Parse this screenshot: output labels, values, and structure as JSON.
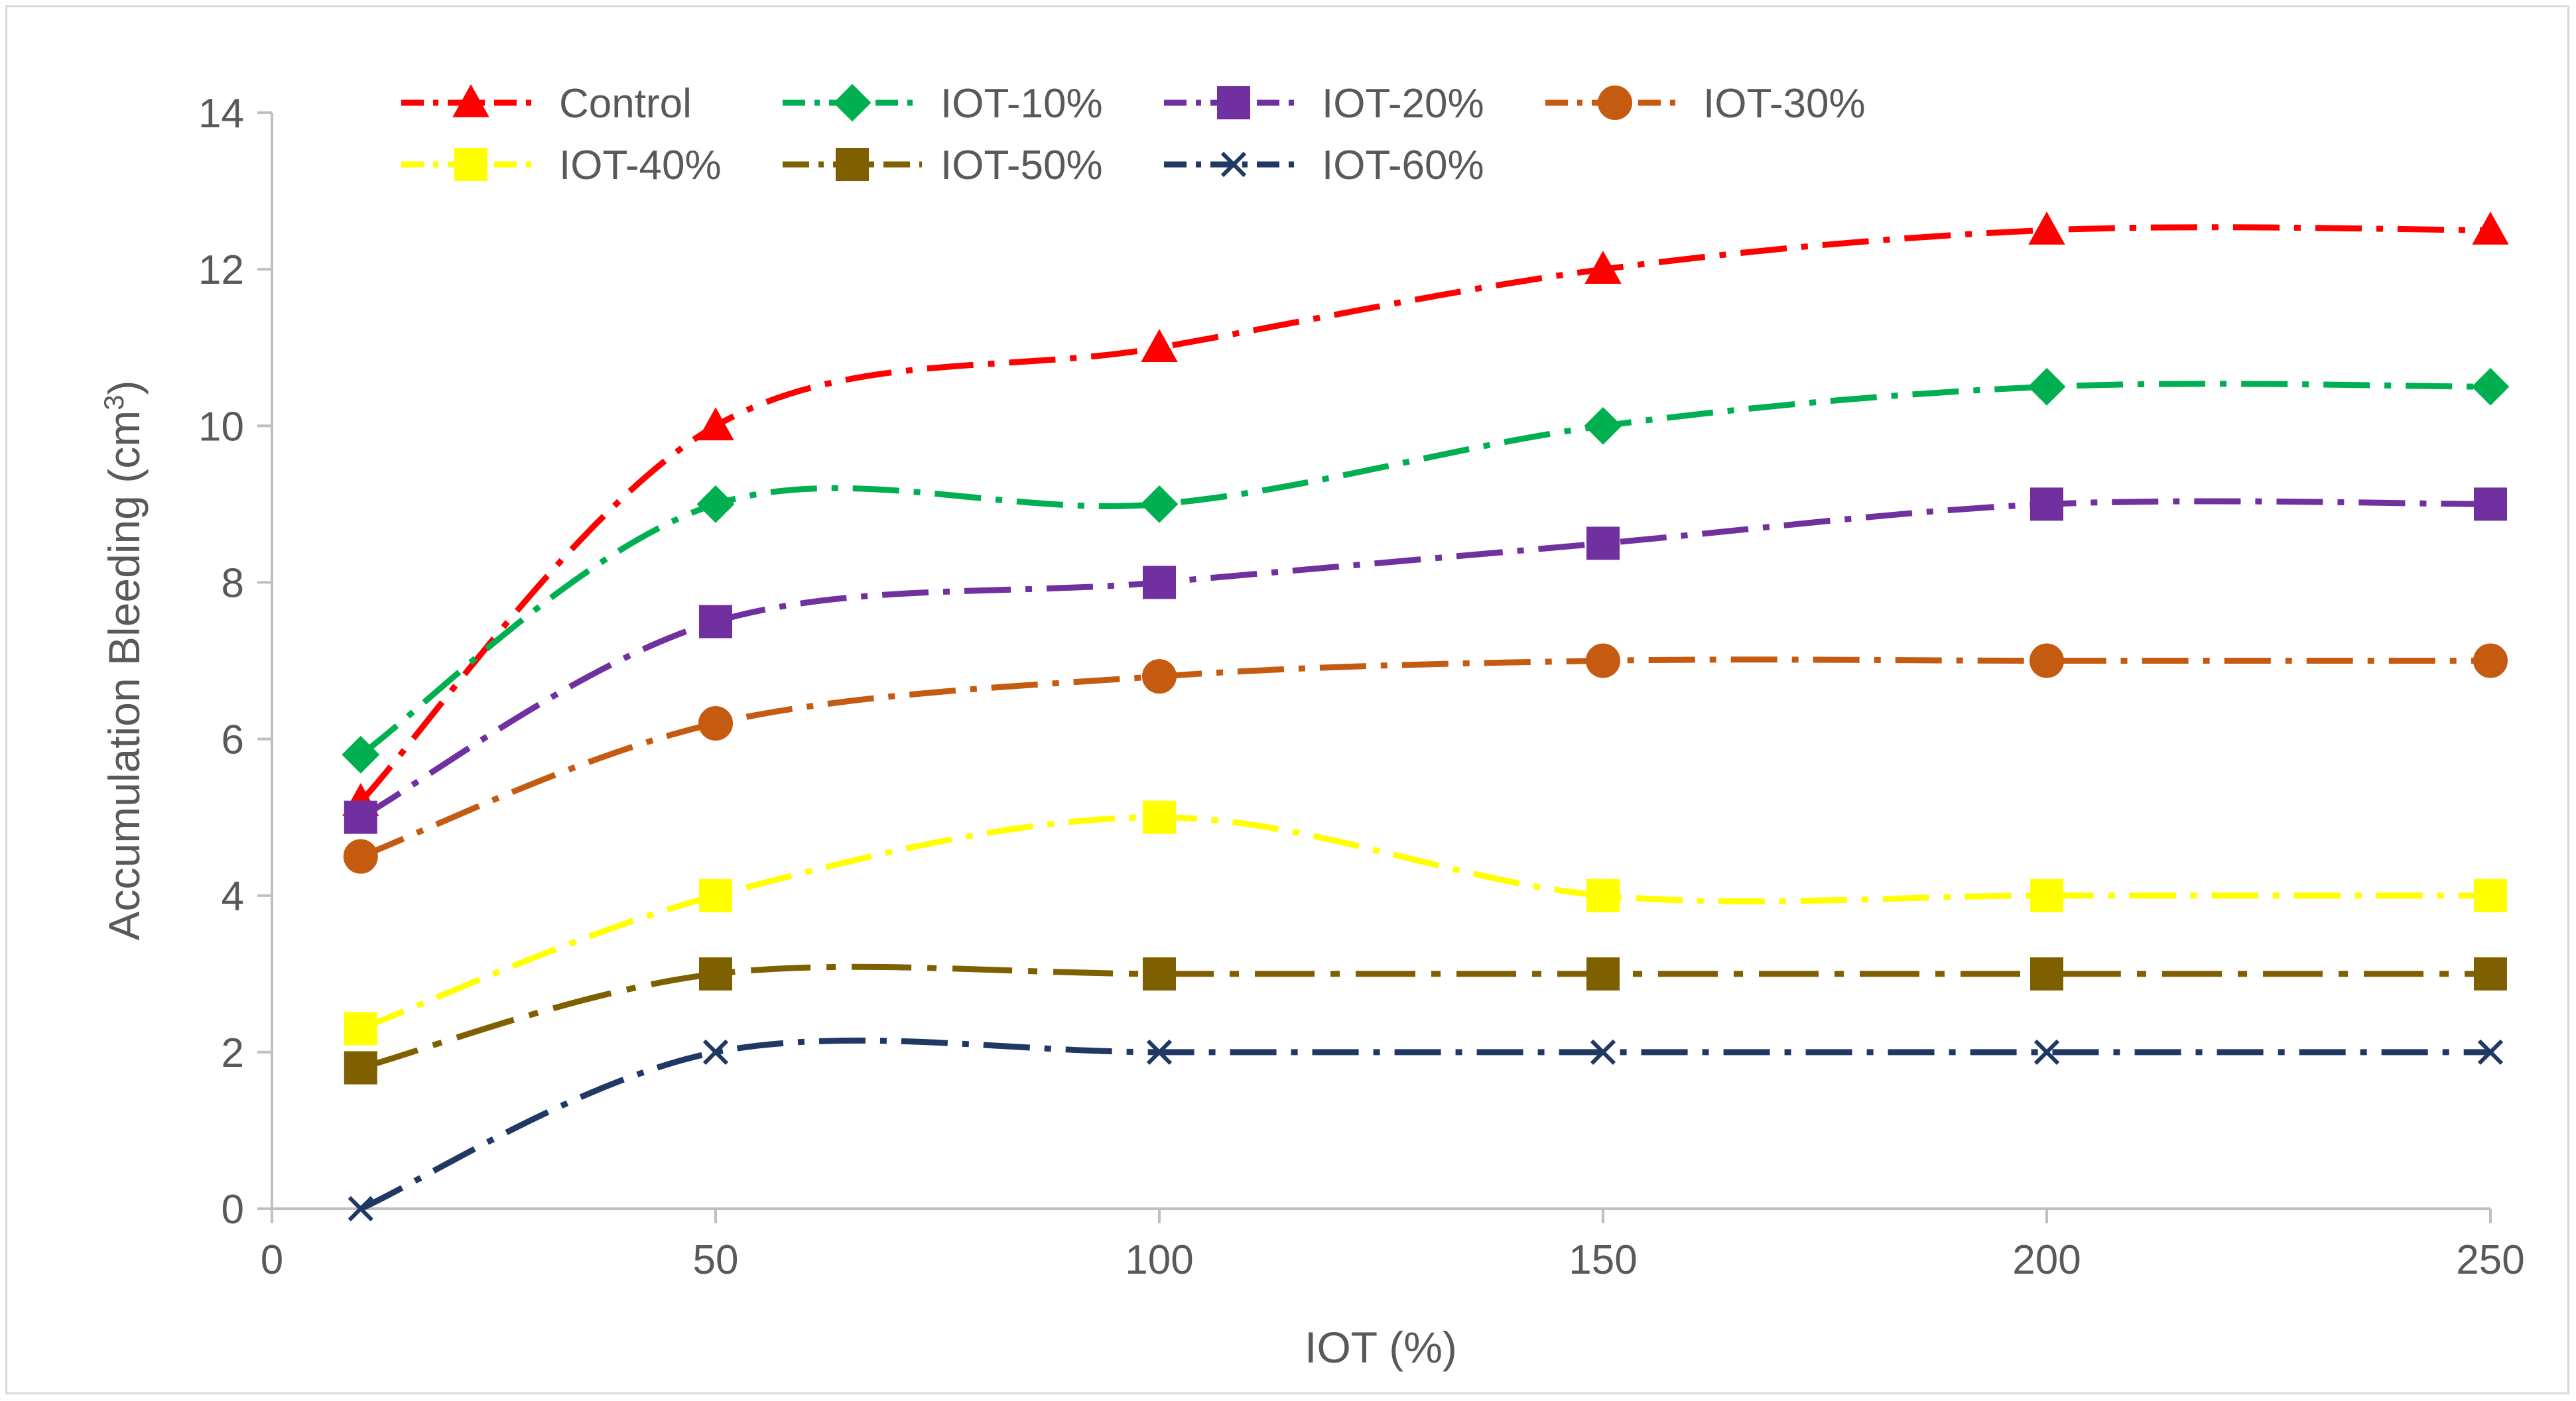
{
  "chart_data": {
    "type": "line",
    "title": "",
    "xlabel": "IOT (%)",
    "ylabel_main": "Accumulation Bleeding (cm",
    "ylabel_sup": "3",
    "ylabel_close": ")",
    "xlim": [
      0,
      250
    ],
    "ylim": [
      0,
      14
    ],
    "xticks": [
      0,
      50,
      100,
      150,
      200,
      250
    ],
    "yticks": [
      0,
      2,
      4,
      6,
      8,
      10,
      12,
      14
    ],
    "x": [
      10,
      50,
      100,
      150,
      200,
      250
    ],
    "grid": false,
    "legend_position": "top",
    "series": [
      {
        "name": "Control",
        "values": [
          5.2,
          10,
          11,
          12,
          12.5,
          12.5
        ],
        "color": "#ff0000",
        "marker": "triangle",
        "dash": "dashdot"
      },
      {
        "name": "IOT-10%",
        "values": [
          5.8,
          9,
          9,
          10,
          10.5,
          10.5
        ],
        "color": "#00b050",
        "marker": "diamond",
        "dash": "dashdot"
      },
      {
        "name": "IOT-20%",
        "values": [
          5,
          7.5,
          8,
          8.5,
          9,
          9
        ],
        "color": "#7030a0",
        "marker": "square",
        "dash": "dashdot"
      },
      {
        "name": "IOT-30%",
        "values": [
          4.5,
          6.2,
          6.8,
          7,
          7,
          7
        ],
        "color": "#c55a11",
        "marker": "circle",
        "dash": "dashdot"
      },
      {
        "name": "IOT-40%",
        "values": [
          2.3,
          4,
          5,
          4,
          4,
          4
        ],
        "color": "#ffff00",
        "marker": "square",
        "dash": "dashdot"
      },
      {
        "name": "IOT-50%",
        "values": [
          1.8,
          3,
          3,
          3,
          3,
          3
        ],
        "color": "#7f6000",
        "marker": "square",
        "dash": "longdashdot"
      },
      {
        "name": "IOT-60%",
        "values": [
          0,
          2,
          2,
          2,
          2,
          2
        ],
        "color": "#1f3864",
        "marker": "x",
        "dash": "dashdot"
      }
    ]
  }
}
